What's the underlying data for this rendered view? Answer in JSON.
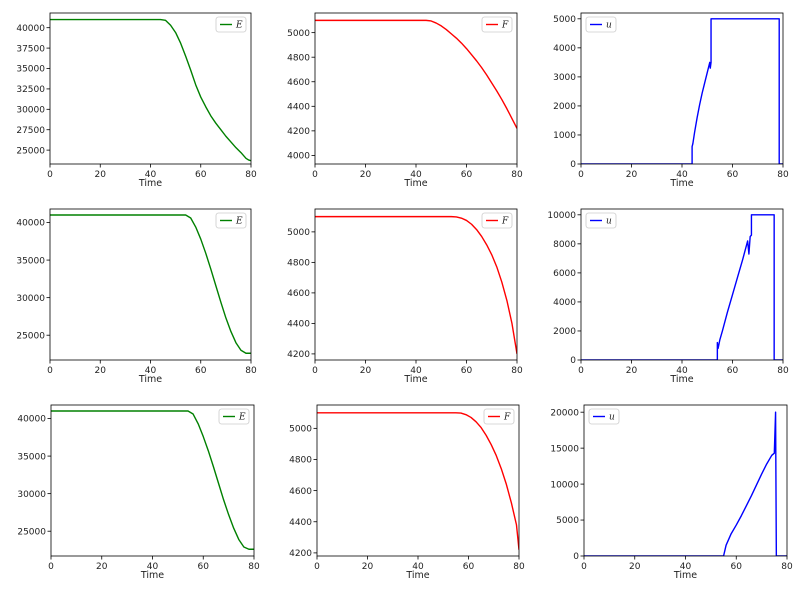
{
  "figure": {
    "row_count": 3,
    "column_count": 3
  },
  "chart_data": [
    {
      "type": "line",
      "xlabel": "Time",
      "xlim": [
        0,
        80
      ],
      "xticks": [
        0,
        20,
        40,
        60,
        80
      ],
      "ylim": [
        23300,
        41800
      ],
      "yticks": [
        25000,
        27500,
        30000,
        32500,
        35000,
        37500,
        40000
      ],
      "legend": {
        "position": "top-right"
      },
      "series": [
        {
          "name": "E",
          "color": "#008000",
          "x": [
            0,
            40,
            44,
            46,
            48,
            50,
            52,
            54,
            56,
            58,
            60,
            62,
            64,
            66,
            68,
            70,
            72,
            74,
            76,
            78,
            79,
            80
          ],
          "y": [
            41000,
            41000,
            41000,
            40900,
            40300,
            39400,
            38100,
            36500,
            34800,
            33000,
            31500,
            30300,
            29200,
            28300,
            27500,
            26700,
            26000,
            25300,
            24700,
            24000,
            23800,
            23700
          ]
        }
      ]
    },
    {
      "type": "line",
      "xlabel": "Time",
      "xlim": [
        0,
        80
      ],
      "xticks": [
        0,
        20,
        40,
        60,
        80
      ],
      "ylim": [
        3930,
        5160
      ],
      "yticks": [
        4000,
        4200,
        4400,
        4600,
        4800,
        5000
      ],
      "legend": {
        "position": "top-right"
      },
      "series": [
        {
          "name": "F",
          "color": "#ff0000",
          "x": [
            0,
            44,
            46,
            48,
            50,
            52,
            54,
            56,
            58,
            60,
            62,
            64,
            66,
            68,
            70,
            72,
            74,
            76,
            78,
            80
          ],
          "y": [
            5100,
            5100,
            5095,
            5078,
            5055,
            5025,
            4990,
            4955,
            4915,
            4870,
            4820,
            4770,
            4715,
            4655,
            4590,
            4525,
            4455,
            4380,
            4300,
            4220
          ]
        }
      ]
    },
    {
      "type": "line",
      "xlabel": "Time",
      "xlim": [
        0,
        80
      ],
      "xticks": [
        0,
        20,
        40,
        60,
        80
      ],
      "ylim": [
        0,
        5200
      ],
      "yticks": [
        0,
        1000,
        2000,
        3000,
        4000,
        5000
      ],
      "legend": {
        "position": "top-left"
      },
      "series": [
        {
          "name": "u",
          "color": "#0000ff",
          "x": [
            0,
            44,
            44,
            44.3,
            45,
            46,
            47,
            48,
            49,
            50,
            51,
            51.2,
            51.5,
            51.5,
            78.5,
            78.5,
            80
          ],
          "y": [
            0,
            0,
            600,
            700,
            1100,
            1600,
            2050,
            2450,
            2800,
            3150,
            3500,
            3300,
            3500,
            5000,
            5000,
            0,
            0
          ]
        }
      ]
    },
    {
      "type": "line",
      "xlabel": "Time",
      "xlim": [
        0,
        80
      ],
      "xticks": [
        0,
        20,
        40,
        60,
        80
      ],
      "ylim": [
        21700,
        41800
      ],
      "yticks": [
        25000,
        30000,
        35000,
        40000
      ],
      "legend": {
        "position": "top-right"
      },
      "series": [
        {
          "name": "E",
          "color": "#008000",
          "x": [
            0,
            50,
            54,
            56,
            58,
            60,
            62,
            64,
            66,
            68,
            70,
            72,
            74,
            76,
            78,
            80
          ],
          "y": [
            41000,
            41000,
            41000,
            40600,
            39400,
            37800,
            35900,
            33800,
            31600,
            29400,
            27300,
            25500,
            24000,
            23000,
            22600,
            22600
          ]
        }
      ]
    },
    {
      "type": "line",
      "xlabel": "Time",
      "xlim": [
        0,
        80
      ],
      "xticks": [
        0,
        20,
        40,
        60,
        80
      ],
      "ylim": [
        4160,
        5150
      ],
      "yticks": [
        4200,
        4400,
        4600,
        4800,
        5000
      ],
      "legend": {
        "position": "top-right"
      },
      "series": [
        {
          "name": "F",
          "color": "#ff0000",
          "x": [
            0,
            54,
            56,
            58,
            60,
            62,
            64,
            66,
            68,
            70,
            72,
            74,
            76,
            78,
            80
          ],
          "y": [
            5100,
            5100,
            5098,
            5090,
            5075,
            5050,
            5015,
            4970,
            4915,
            4850,
            4770,
            4670,
            4550,
            4400,
            4200
          ]
        }
      ]
    },
    {
      "type": "line",
      "xlabel": "Time",
      "xlim": [
        0,
        80
      ],
      "xticks": [
        0,
        20,
        40,
        60,
        80
      ],
      "ylim": [
        0,
        10400
      ],
      "yticks": [
        0,
        2000,
        4000,
        6000,
        8000,
        10000
      ],
      "legend": {
        "position": "top-left"
      },
      "series": [
        {
          "name": "u",
          "color": "#0000ff",
          "x": [
            0,
            54,
            54,
            54.3,
            55,
            56,
            58,
            60,
            62,
            64,
            66,
            66.5,
            67,
            67.5,
            67.5,
            76.5,
            76.5,
            80
          ],
          "y": [
            0,
            0,
            1200,
            800,
            1400,
            2000,
            3300,
            4500,
            5700,
            6900,
            8200,
            7300,
            8500,
            8600,
            10000,
            10000,
            0,
            0
          ]
        }
      ]
    },
    {
      "type": "line",
      "xlabel": "Time",
      "xlim": [
        0,
        80
      ],
      "xticks": [
        0,
        20,
        40,
        60,
        80
      ],
      "ylim": [
        21700,
        41800
      ],
      "yticks": [
        25000,
        30000,
        35000,
        40000
      ],
      "legend": {
        "position": "top-right"
      },
      "series": [
        {
          "name": "E",
          "color": "#008000",
          "x": [
            0,
            50,
            54,
            56,
            58,
            60,
            62,
            64,
            66,
            68,
            70,
            72,
            74,
            76,
            78,
            80
          ],
          "y": [
            41000,
            41000,
            41000,
            40600,
            39300,
            37600,
            35700,
            33600,
            31400,
            29200,
            27200,
            25400,
            23900,
            22900,
            22600,
            22600
          ]
        }
      ]
    },
    {
      "type": "line",
      "xlabel": "Time",
      "xlim": [
        0,
        80
      ],
      "xticks": [
        0,
        20,
        40,
        60,
        80
      ],
      "ylim": [
        4180,
        5150
      ],
      "yticks": [
        4200,
        4400,
        4600,
        4800,
        5000
      ],
      "legend": {
        "position": "top-right"
      },
      "series": [
        {
          "name": "F",
          "color": "#ff0000",
          "x": [
            0,
            55,
            57,
            59,
            61,
            63,
            65,
            67,
            69,
            71,
            73,
            75,
            77,
            79,
            80
          ],
          "y": [
            5100,
            5100,
            5098,
            5088,
            5070,
            5042,
            5005,
            4955,
            4895,
            4825,
            4740,
            4640,
            4520,
            4380,
            4220
          ]
        }
      ]
    },
    {
      "type": "line",
      "xlabel": "Time",
      "xlim": [
        0,
        80
      ],
      "xticks": [
        0,
        20,
        40,
        60,
        80
      ],
      "ylim": [
        0,
        21000
      ],
      "yticks": [
        0,
        5000,
        10000,
        15000,
        20000
      ],
      "legend": {
        "position": "top-left"
      },
      "series": [
        {
          "name": "u",
          "color": "#0000ff",
          "x": [
            0,
            55,
            56,
            58,
            60,
            62,
            64,
            66,
            68,
            70,
            72,
            74,
            75,
            75.5,
            75.8,
            75.8,
            80
          ],
          "y": [
            0,
            0,
            1500,
            3100,
            4300,
            5600,
            7000,
            8400,
            9900,
            11400,
            12800,
            14000,
            14300,
            20000,
            0,
            0,
            0
          ]
        }
      ]
    }
  ]
}
